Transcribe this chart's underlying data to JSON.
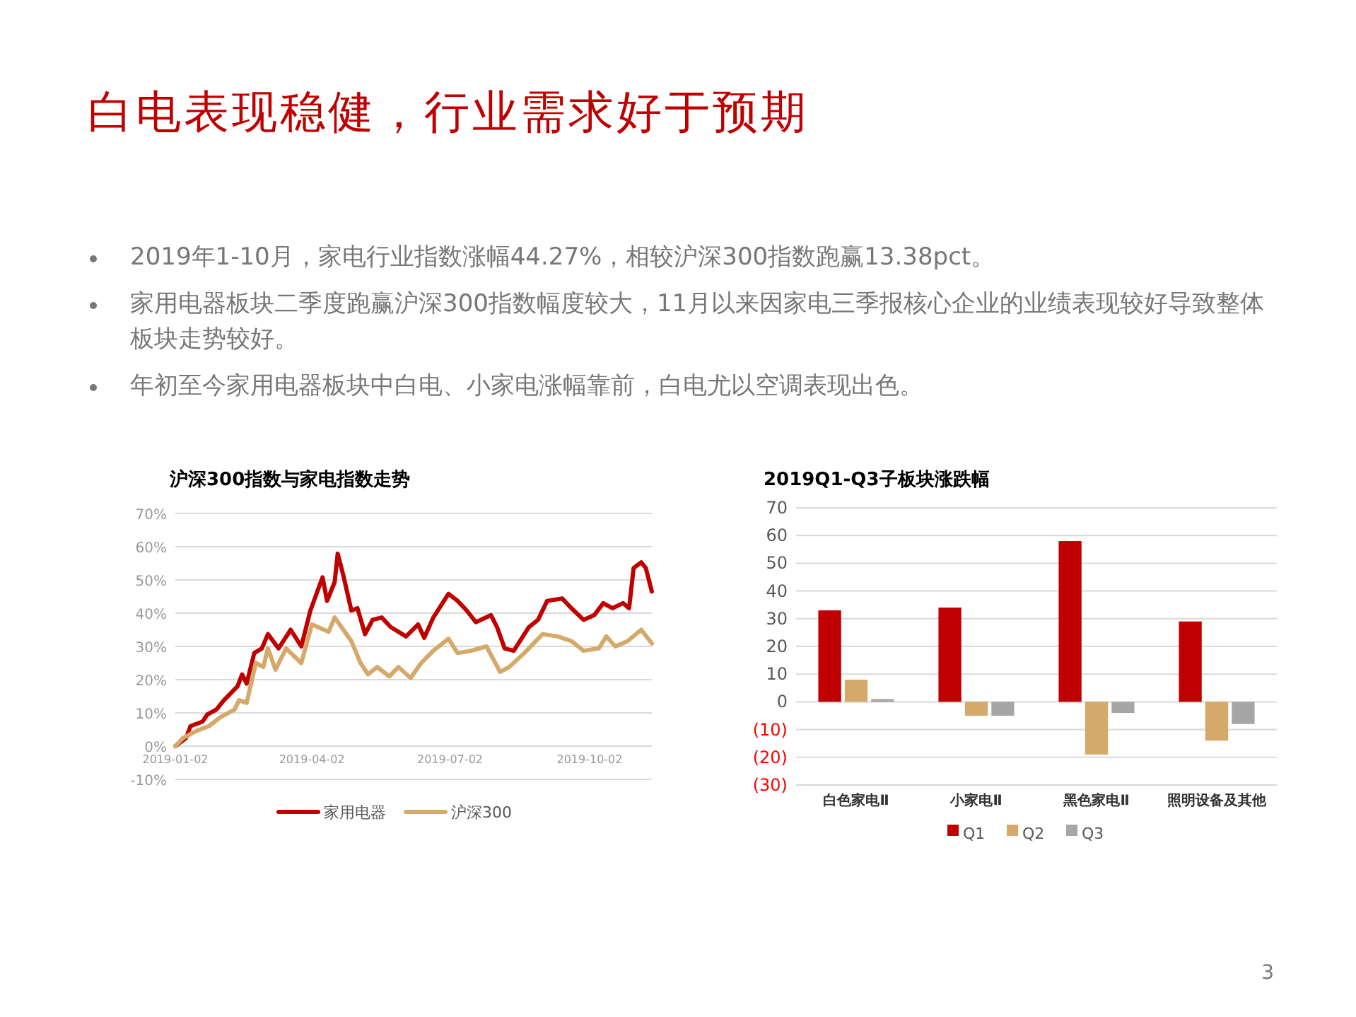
{
  "chart_data": [
    {
      "type": "other",
      "title": "白电表现稳健，行业需求好于预期",
      "annotations": [
        "2019年1-10月，家电行业指数涨幅44.27%，相较沪深300指数跑赢13.38pct。",
        "家用电器板块二季度跑赢沪深300指数幅度较大，11月以来因家电三季报核心企业的业绩表现较好导致整体板块走势较好。",
        "年初至今家用电器板块中白电、小家电涨幅靠前，白电尤以空调表现出色。",
        "3"
      ]
    },
    {
      "type": "line",
      "title": "沪深300指数与家电指数走势",
      "ylim": [
        -10,
        70
      ],
      "yticks": [
        {
          "value": -10,
          "label": "-10%"
        },
        {
          "value": 0,
          "label": "0%"
        },
        {
          "value": 10,
          "label": "10%"
        },
        {
          "value": 20,
          "label": "20%"
        },
        {
          "value": 30,
          "label": "30%"
        },
        {
          "value": 40,
          "label": "40%"
        },
        {
          "value": 50,
          "label": "50%"
        },
        {
          "value": 60,
          "label": "60%"
        },
        {
          "value": 70,
          "label": "70%"
        }
      ],
      "xlim": [
        "2019-01-02",
        "2019-11-12"
      ],
      "xticks": [
        "2019-01-02",
        "2019-04-02",
        "2019-07-02",
        "2019-10-02"
      ],
      "grid": "y",
      "legend": "bottom",
      "line_style": "solid",
      "marker": "none",
      "series": [
        {
          "name": "家用电器",
          "color": "#c00000",
          "x": [
            "2019-01-02",
            "2019-01-09",
            "2019-01-12",
            "2019-01-20",
            "2019-01-23",
            "2019-01-29",
            "2019-02-03",
            "2019-02-12",
            "2019-02-15",
            "2019-02-18",
            "2019-02-23",
            "2019-02-28",
            "2019-03-04",
            "2019-03-11",
            "2019-03-19",
            "2019-03-26",
            "2019-04-01",
            "2019-04-09",
            "2019-04-12",
            "2019-04-17",
            "2019-04-19",
            "2019-04-23",
            "2019-04-28",
            "2019-05-02",
            "2019-05-07",
            "2019-05-12",
            "2019-05-18",
            "2019-05-24",
            "2019-06-03",
            "2019-06-11",
            "2019-06-15",
            "2019-06-21",
            "2019-07-01",
            "2019-07-07",
            "2019-07-13",
            "2019-07-19",
            "2019-07-29",
            "2019-08-02",
            "2019-08-07",
            "2019-08-13",
            "2019-08-23",
            "2019-08-29",
            "2019-09-04",
            "2019-09-14",
            "2019-09-20",
            "2019-09-28",
            "2019-10-05",
            "2019-10-11",
            "2019-10-17",
            "2019-10-24",
            "2019-10-28",
            "2019-10-31",
            "2019-11-05",
            "2019-11-08",
            "2019-11-12"
          ],
          "values": [
            0,
            2.4,
            6,
            7.4,
            9.5,
            11,
            13.8,
            18,
            21.6,
            18.8,
            28,
            29.4,
            33.7,
            29.4,
            35,
            30,
            40.8,
            50.8,
            43.7,
            49.4,
            57.9,
            50.8,
            40.8,
            41.5,
            33.7,
            38,
            38.7,
            35.8,
            33,
            36.6,
            32.6,
            38.7,
            45.8,
            43.7,
            40.8,
            37.3,
            39.4,
            35.8,
            29.4,
            28.7,
            35.8,
            38,
            43.7,
            44.4,
            41.5,
            38,
            39.4,
            43,
            41.5,
            43,
            41.5,
            53.6,
            55.3,
            53.6,
            46.5
          ]
        },
        {
          "name": "沪深300",
          "color": "#d4a96a",
          "x": [
            "2019-01-02",
            "2019-01-07",
            "2019-01-16",
            "2019-01-24",
            "2019-02-01",
            "2019-02-10",
            "2019-02-13",
            "2019-02-18",
            "2019-02-24",
            "2019-03-01",
            "2019-03-04",
            "2019-03-09",
            "2019-03-16",
            "2019-03-26",
            "2019-04-02",
            "2019-04-13",
            "2019-04-17",
            "2019-04-28",
            "2019-05-04",
            "2019-05-09",
            "2019-05-15",
            "2019-05-23",
            "2019-05-29",
            "2019-06-06",
            "2019-06-13",
            "2019-06-21",
            "2019-07-01",
            "2019-07-07",
            "2019-07-16",
            "2019-07-26",
            "2019-08-04",
            "2019-08-10",
            "2019-08-20",
            "2019-09-01",
            "2019-09-11",
            "2019-09-20",
            "2019-09-28",
            "2019-10-08",
            "2019-10-13",
            "2019-10-19",
            "2019-10-27",
            "2019-11-05",
            "2019-11-12"
          ],
          "values": [
            0,
            2.4,
            4.6,
            6,
            8.8,
            11,
            13.8,
            13,
            25,
            23.8,
            29.4,
            23,
            29.4,
            25,
            36.6,
            34.4,
            38.7,
            31.6,
            25,
            21.6,
            23.8,
            21,
            23.8,
            20.5,
            25,
            28.7,
            32.3,
            28,
            28.7,
            30,
            22.3,
            23.8,
            28,
            33.7,
            33,
            31.6,
            28.7,
            29.4,
            33,
            30,
            31.6,
            35,
            30.9
          ]
        }
      ]
    },
    {
      "type": "bar",
      "title": "2019Q1-Q3子板块涨跌幅",
      "categories": [
        "白色家电Ⅱ",
        "小家电Ⅱ",
        "黑色家电Ⅱ",
        "照明设备及其他"
      ],
      "ylim": [
        -30,
        70
      ],
      "yticks": [
        {
          "value": -30,
          "label": "(30)"
        },
        {
          "value": -20,
          "label": "(20)"
        },
        {
          "value": -10,
          "label": "(10)"
        },
        0,
        10,
        20,
        30,
        40,
        50,
        60,
        70
      ],
      "grid": "y",
      "legend": "bottom",
      "series": [
        {
          "name": "Q1",
          "color": "#c00000",
          "values": [
            33,
            34,
            58,
            29
          ]
        },
        {
          "name": "Q2",
          "color": "#d4a96a",
          "values": [
            8,
            -5,
            -19,
            -14
          ]
        },
        {
          "name": "Q3",
          "color": "#a6a6a6",
          "values": [
            1,
            -5,
            -4,
            -8
          ]
        }
      ]
    }
  ]
}
